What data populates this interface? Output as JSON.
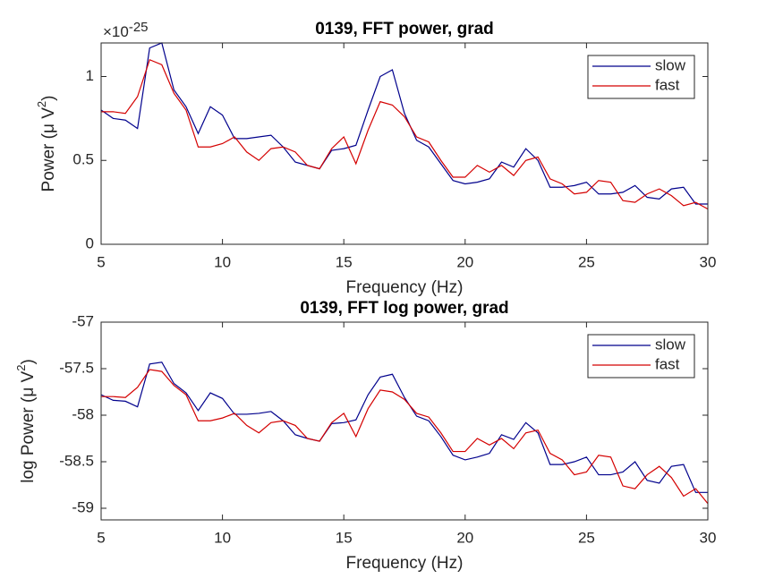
{
  "chart_data": [
    {
      "type": "line",
      "title": "0139, FFT power, grad",
      "xlabel": "Frequency (Hz)",
      "ylabel": "Power (μ V",
      "ylabel_sup": "2",
      "ylabel_end": ")",
      "y_multiplier": "×10",
      "y_exponent": "-25",
      "x": [
        5,
        5.5,
        6,
        6.5,
        7,
        7.5,
        8,
        8.5,
        9,
        9.5,
        10,
        10.5,
        11,
        11.5,
        12,
        12.5,
        13,
        13.5,
        14,
        14.5,
        15,
        15.5,
        16,
        16.5,
        17,
        17.5,
        18,
        18.5,
        19,
        19.5,
        20,
        20.5,
        21,
        21.5,
        22,
        22.5,
        23,
        23.5,
        24,
        24.5,
        25,
        25.5,
        26,
        26.5,
        27,
        27.5,
        28,
        28.5,
        29,
        29.5,
        30
      ],
      "series": [
        {
          "name": "slow",
          "color": "#00008c",
          "values": [
            0.8,
            0.75,
            0.74,
            0.69,
            1.17,
            1.2,
            0.92,
            0.82,
            0.66,
            0.82,
            0.77,
            0.63,
            0.63,
            0.64,
            0.65,
            0.58,
            0.49,
            0.47,
            0.45,
            0.56,
            0.57,
            0.59,
            0.8,
            1.0,
            1.04,
            0.78,
            0.62,
            0.58,
            0.48,
            0.38,
            0.36,
            0.37,
            0.39,
            0.49,
            0.46,
            0.57,
            0.5,
            0.34,
            0.34,
            0.35,
            0.37,
            0.3,
            0.3,
            0.31,
            0.35,
            0.28,
            0.27,
            0.33,
            0.34,
            0.24,
            0.24
          ]
        },
        {
          "name": "fast",
          "color": "#d40000",
          "values": [
            0.79,
            0.79,
            0.78,
            0.88,
            1.1,
            1.07,
            0.9,
            0.8,
            0.58,
            0.58,
            0.6,
            0.64,
            0.55,
            0.5,
            0.57,
            0.58,
            0.55,
            0.47,
            0.45,
            0.57,
            0.64,
            0.48,
            0.68,
            0.85,
            0.83,
            0.76,
            0.64,
            0.61,
            0.5,
            0.4,
            0.4,
            0.47,
            0.43,
            0.47,
            0.41,
            0.5,
            0.52,
            0.39,
            0.36,
            0.3,
            0.31,
            0.38,
            0.37,
            0.26,
            0.25,
            0.3,
            0.33,
            0.29,
            0.23,
            0.25,
            0.21
          ]
        }
      ],
      "xlim": [
        5,
        30
      ],
      "xticks": [
        5,
        10,
        15,
        20,
        25,
        30
      ],
      "ylim": [
        0,
        1.2
      ],
      "yticks": [
        0,
        0.5,
        1
      ],
      "legend": "upper right"
    },
    {
      "type": "line",
      "title": "0139, FFT log power, grad",
      "xlabel": "Frequency (Hz)",
      "ylabel": "log Power (μ V",
      "ylabel_sup": "2",
      "ylabel_end": ")",
      "x": [
        5,
        5.5,
        6,
        6.5,
        7,
        7.5,
        8,
        8.5,
        9,
        9.5,
        10,
        10.5,
        11,
        11.5,
        12,
        12.5,
        13,
        13.5,
        14,
        14.5,
        15,
        15.5,
        16,
        16.5,
        17,
        17.5,
        18,
        18.5,
        19,
        19.5,
        20,
        20.5,
        21,
        21.5,
        22,
        22.5,
        23,
        23.5,
        24,
        24.5,
        25,
        25.5,
        26,
        26.5,
        27,
        27.5,
        28,
        28.5,
        29,
        29.5,
        30
      ],
      "series": [
        {
          "name": "slow",
          "color": "#00008c",
          "values": [
            -57.78,
            -57.84,
            -57.85,
            -57.91,
            -57.45,
            -57.43,
            -57.66,
            -57.76,
            -57.95,
            -57.76,
            -57.82,
            -57.99,
            -57.99,
            -57.98,
            -57.96,
            -58.06,
            -58.21,
            -58.25,
            -58.28,
            -58.09,
            -58.08,
            -58.05,
            -57.78,
            -57.59,
            -57.56,
            -57.81,
            -58.01,
            -58.06,
            -58.23,
            -58.43,
            -58.48,
            -58.45,
            -58.41,
            -58.21,
            -58.26,
            -58.08,
            -58.19,
            -58.53,
            -58.53,
            -58.5,
            -58.45,
            -58.64,
            -58.64,
            -58.61,
            -58.5,
            -58.7,
            -58.73,
            -58.55,
            -58.53,
            -58.83,
            -58.83
          ]
        },
        {
          "name": "fast",
          "color": "#d40000",
          "values": [
            -57.8,
            -57.8,
            -57.81,
            -57.7,
            -57.51,
            -57.53,
            -57.68,
            -57.78,
            -58.06,
            -58.06,
            -58.03,
            -57.98,
            -58.11,
            -58.19,
            -58.08,
            -58.06,
            -58.11,
            -58.25,
            -58.28,
            -58.08,
            -57.98,
            -58.23,
            -57.93,
            -57.73,
            -57.75,
            -57.83,
            -57.98,
            -58.02,
            -58.19,
            -58.39,
            -58.39,
            -58.25,
            -58.32,
            -58.25,
            -58.36,
            -58.19,
            -58.16,
            -58.41,
            -58.48,
            -58.64,
            -58.61,
            -58.43,
            -58.45,
            -58.76,
            -58.79,
            -58.64,
            -58.55,
            -58.67,
            -58.87,
            -58.79,
            -58.95
          ]
        }
      ],
      "xlim": [
        5,
        30
      ],
      "xticks": [
        5,
        10,
        15,
        20,
        25,
        30
      ],
      "ylim": [
        -59.125,
        -57
      ],
      "yticks": [
        -59,
        -58.5,
        -58,
        -57.5,
        -57
      ],
      "legend": "upper right"
    }
  ]
}
